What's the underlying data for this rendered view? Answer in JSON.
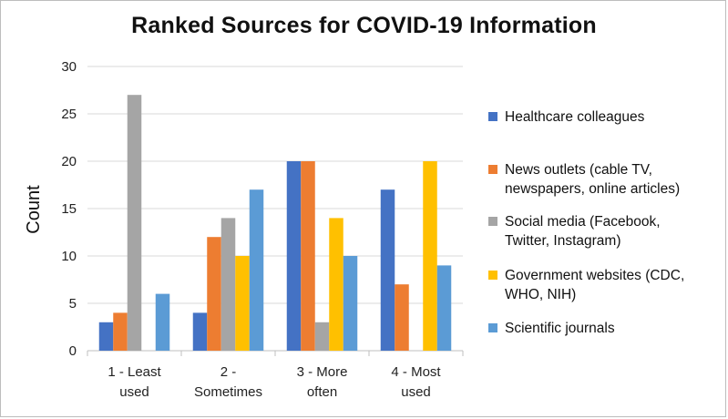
{
  "chart_data": {
    "type": "bar",
    "title": "Ranked Sources for COVID-19 Information",
    "xlabel": "",
    "ylabel": "Count",
    "ylim": [
      0,
      30
    ],
    "yticks": [
      0,
      5,
      10,
      15,
      20,
      25,
      30
    ],
    "grid": true,
    "legend_position": "right",
    "categories": [
      [
        "1 - Least",
        "used"
      ],
      [
        "2 -",
        "Sometimes"
      ],
      [
        "3 - More",
        "often"
      ],
      [
        "4 - Most",
        "used"
      ]
    ],
    "series": [
      {
        "name": [
          "Healthcare colleagues"
        ],
        "color": "#4472c4",
        "values": [
          3,
          4,
          20,
          17
        ]
      },
      {
        "name": [
          "News outlets (cable TV,",
          "newspapers, online articles)"
        ],
        "color": "#ed7d31",
        "values": [
          4,
          12,
          20,
          7
        ]
      },
      {
        "name": [
          "Social media (Facebook,",
          "Twitter, Instagram)"
        ],
        "color": "#a5a5a5",
        "values": [
          27,
          14,
          3,
          0
        ]
      },
      {
        "name": [
          "Government websites (CDC,",
          "WHO, NIH)"
        ],
        "color": "#ffc000",
        "values": [
          0,
          10,
          14,
          20
        ]
      },
      {
        "name": [
          "Scientific journals"
        ],
        "color": "#5b9bd5",
        "values": [
          6,
          17,
          10,
          9
        ]
      }
    ]
  }
}
